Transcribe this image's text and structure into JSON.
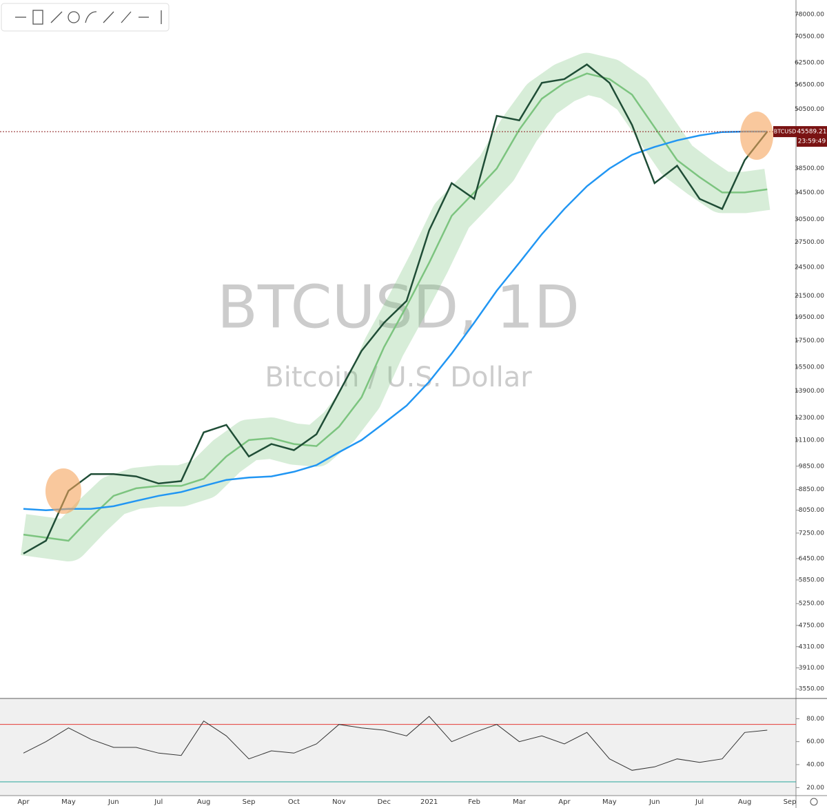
{
  "chart_data": [
    {
      "type": "line",
      "title": "BTCUSD, 1D",
      "subtitle": "Bitcoin / U.S. Dollar",
      "log_scale": true,
      "symbol": "BTCUSD",
      "last_price": 45589.21,
      "countdown": "23:59:49",
      "ylim": [
        3410,
        83300
      ],
      "yticks": [
        {
          "value": 78000,
          "label": "78000.00"
        },
        {
          "value": 70500,
          "label": "70500.00"
        },
        {
          "value": 62500,
          "label": "62500.00"
        },
        {
          "value": 56500,
          "label": "56500.00"
        },
        {
          "value": 50500,
          "label": "50500.00"
        },
        {
          "value": 38500,
          "label": "38500.00"
        },
        {
          "value": 34500,
          "label": "34500.00"
        },
        {
          "value": 30500,
          "label": "30500.00"
        },
        {
          "value": 27500,
          "label": "27500.00"
        },
        {
          "value": 24500,
          "label": "24500.00"
        },
        {
          "value": 21500,
          "label": "21500.00"
        },
        {
          "value": 19500,
          "label": "19500.00"
        },
        {
          "value": 17500,
          "label": "17500.00"
        },
        {
          "value": 15500,
          "label": "15500.00"
        },
        {
          "value": 13900,
          "label": "13900.00"
        },
        {
          "value": 12300,
          "label": "12300.00"
        },
        {
          "value": 11100,
          "label": "11100.00"
        },
        {
          "value": 9850,
          "label": "9850.00"
        },
        {
          "value": 8850,
          "label": "8850.00"
        },
        {
          "value": 8050,
          "label": "8050.00"
        },
        {
          "value": 7250,
          "label": "7250.00"
        },
        {
          "value": 6450,
          "label": "6450.00"
        },
        {
          "value": 5850,
          "label": "5850.00"
        },
        {
          "value": 5250,
          "label": "5250.00"
        },
        {
          "value": 4750,
          "label": "4750.00"
        },
        {
          "value": 4310,
          "label": "4310.00"
        },
        {
          "value": 3910,
          "label": "3910.00"
        },
        {
          "value": 3550,
          "label": "3550.00"
        }
      ],
      "series": [
        {
          "color": "#7cc47f",
          "values": [
            7200,
            7100,
            7000,
            7800,
            8600,
            8900,
            9000,
            9000,
            9300,
            10300,
            11100,
            11200,
            10900,
            10800,
            11800,
            13500,
            17000,
            20500,
            25000,
            31000,
            34500,
            38500,
            46000,
            53000,
            57000,
            59500,
            58000,
            54000,
            46500,
            40000,
            37000,
            34500,
            34500,
            35000,
            null
          ]
        },
        {
          "color": "#2196f3",
          "values": [
            8100,
            8050,
            8100,
            8100,
            8200,
            8400,
            8600,
            8750,
            9000,
            9250,
            9350,
            9400,
            9600,
            9900,
            10500,
            11100,
            12000,
            13000,
            14500,
            16500,
            19000,
            22000,
            25000,
            28500,
            32000,
            35500,
            38500,
            41000,
            42500,
            43800,
            44800,
            45500,
            45600,
            45600,
            null
          ]
        },
        {
          "color": "#1f4d36",
          "values": [
            6600,
            7000,
            8800,
            9500,
            9500,
            9400,
            9100,
            9200,
            11500,
            11900,
            10300,
            10900,
            10600,
            11400,
            13800,
            16700,
            19000,
            21000,
            29000,
            36000,
            33500,
            49000,
            48000,
            57000,
            58000,
            62000,
            57000,
            47000,
            36000,
            39000,
            33500,
            32000,
            40000,
            45589.21,
            null
          ]
        }
      ]
    },
    {
      "type": "line",
      "categories": [
        "Apr",
        null,
        "May",
        null,
        "Jun",
        null,
        "Jul",
        null,
        "Aug",
        null,
        "Sep",
        null,
        "Oct",
        null,
        "Nov",
        null,
        "Dec",
        null,
        "2021",
        null,
        "Feb",
        null,
        "Mar",
        null,
        "Apr",
        null,
        "May",
        null,
        "Jun",
        null,
        "Jul",
        null,
        "Aug",
        null,
        "Sep"
      ],
      "ylim": [
        13,
        97
      ],
      "yticks": [
        {
          "value": 80,
          "label": "80.00"
        },
        {
          "value": 60,
          "label": "60.00"
        },
        {
          "value": 40,
          "label": "40.00"
        },
        {
          "value": 20,
          "label": "20.00"
        }
      ],
      "levels": [
        {
          "value": 75,
          "color": "#e53935"
        },
        {
          "value": 25,
          "color": "#26a69a"
        }
      ],
      "series": [
        {
          "color": "#333333",
          "values": [
            50,
            60,
            72,
            62,
            55,
            55,
            50,
            48,
            78,
            65,
            45,
            52,
            50,
            58,
            75,
            72,
            70,
            65,
            82,
            60,
            68,
            75,
            60,
            65,
            58,
            68,
            45,
            35,
            38,
            45,
            42,
            45,
            68,
            70,
            null
          ]
        }
      ]
    }
  ]
}
